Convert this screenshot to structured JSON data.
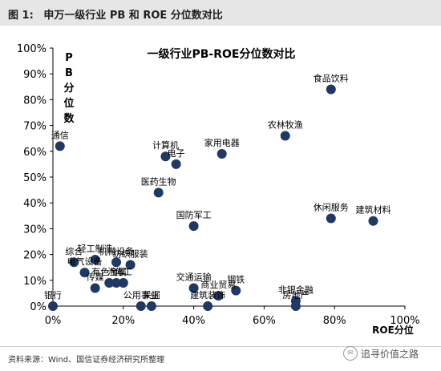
{
  "header": {
    "fig_label": "图 1:",
    "title": "申万一级行业 PB 和 ROE 分位数对比"
  },
  "source": "资料来源：Wind、国信证券经济研究所整理",
  "watermark": "追寻价值之路",
  "chart_data": {
    "type": "scatter",
    "title": "一级行业PB-ROE分位数对比",
    "xlabel": "ROE分位",
    "ylabel": "PB分位数",
    "xlim": [
      0,
      100
    ],
    "ylim": [
      0,
      100
    ],
    "x_ticks": [
      "0%",
      "20%",
      "40%",
      "60%",
      "80%",
      "100%"
    ],
    "y_ticks": [
      "0%",
      "10%",
      "20%",
      "30%",
      "40%",
      "50%",
      "60%",
      "70%",
      "80%",
      "90%",
      "100%"
    ],
    "grid": false,
    "marker_color": "#1f3864",
    "points": [
      {
        "label": "食品饮料",
        "x": 79,
        "y": 84
      },
      {
        "label": "农林牧渔",
        "x": 66,
        "y": 66
      },
      {
        "label": "通信",
        "x": 2,
        "y": 62
      },
      {
        "label": "家用电器",
        "x": 48,
        "y": 59
      },
      {
        "label": "计算机",
        "x": 32,
        "y": 58
      },
      {
        "label": "电子",
        "x": 35,
        "y": 55
      },
      {
        "label": "医药生物",
        "x": 30,
        "y": 44
      },
      {
        "label": "休闲服务",
        "x": 79,
        "y": 34
      },
      {
        "label": "建筑材料",
        "x": 91,
        "y": 33
      },
      {
        "label": "国防军工",
        "x": 40,
        "y": 31
      },
      {
        "label": "综合",
        "x": 6,
        "y": 17
      },
      {
        "label": "轻工制造",
        "x": 12,
        "y": 18
      },
      {
        "label": "机械设备",
        "x": 18,
        "y": 17
      },
      {
        "label": "纺织服装",
        "x": 22,
        "y": 16
      },
      {
        "label": "电气设备",
        "x": 9,
        "y": 13
      },
      {
        "label": "传媒",
        "x": 12,
        "y": 7
      },
      {
        "label": "有色金属",
        "x": 16,
        "y": 9
      },
      {
        "label": "化工",
        "x": 20,
        "y": 9
      },
      {
        "label": "汽车",
        "x": 18,
        "y": 9
      },
      {
        "label": "交通运输",
        "x": 40,
        "y": 7
      },
      {
        "label": "钢铁",
        "x": 52,
        "y": 6
      },
      {
        "label": "商业贸易",
        "x": 47,
        "y": 4
      },
      {
        "label": "建筑装饰",
        "x": 44,
        "y": 0
      },
      {
        "label": "公用事业",
        "x": 25,
        "y": 0
      },
      {
        "label": "采掘",
        "x": 28,
        "y": 0
      },
      {
        "label": "银行",
        "x": 0,
        "y": 0
      },
      {
        "label": "非银金融",
        "x": 69,
        "y": 2
      },
      {
        "label": "房地产",
        "x": 69,
        "y": 0
      }
    ]
  }
}
